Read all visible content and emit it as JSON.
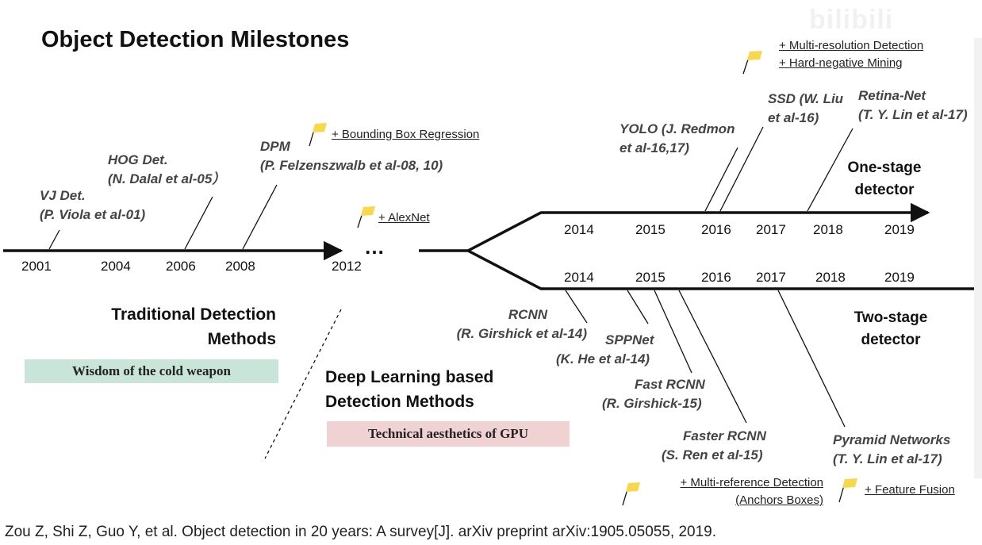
{
  "title": "Object Detection Milestones",
  "watermark": "bilibili",
  "citation": "Zou Z, Shi Z, Guo Y, et al. Object detection in 20 years: A survey[J]. arXiv preprint arXiv:1905.05055, 2019.",
  "traditional": {
    "heading_line1": "Traditional Detection",
    "heading_line2": "Methods",
    "tagline": "Wisdom of the cold weapon",
    "years": [
      "2001",
      "2004",
      "2006",
      "2008",
      "2012"
    ],
    "ellipsis": "…",
    "milestones": [
      {
        "name": "VJ Det.",
        "authors": "(P. Viola et al-01)"
      },
      {
        "name": "HOG Det.",
        "authors": "(N. Dalal et al-05）"
      },
      {
        "name": "DPM",
        "authors": "(P. Felzenszwalb et al-08, 10)"
      }
    ],
    "features": [
      "+ Bounding Box Regression",
      "+ AlexNet"
    ]
  },
  "deep_learning": {
    "heading_line1": "Deep Learning based",
    "heading_line2": "Detection Methods",
    "tagline": "Technical aesthetics of GPU"
  },
  "one_stage": {
    "label_line1": "One-stage",
    "label_line2": "detector",
    "years": [
      "2014",
      "2015",
      "2016",
      "2017",
      "2018",
      "2019"
    ],
    "milestones": [
      {
        "name": "YOLO (J. Redmon",
        "authors": "et al-16,17)"
      },
      {
        "name": "SSD (W. Liu",
        "authors": "et al-16)"
      },
      {
        "name": "Retina-Net",
        "authors": "(T. Y. Lin et al-17)"
      }
    ],
    "features": [
      "+ Multi-resolution Detection",
      "+ Hard-negative Mining"
    ]
  },
  "two_stage": {
    "label_line1": "Two-stage",
    "label_line2": "detector",
    "years": [
      "2014",
      "2015",
      "2016",
      "2017",
      "2018",
      "2019"
    ],
    "milestones": [
      {
        "name": "RCNN",
        "authors": "(R. Girshick et al-14)"
      },
      {
        "name": "SPPNet",
        "authors": "(K. He et al-14)"
      },
      {
        "name": "Fast RCNN",
        "authors": "(R. Girshick-15)"
      },
      {
        "name": "Faster RCNN",
        "authors": "(S. Ren et al-15)"
      },
      {
        "name": "Pyramid Networks",
        "authors": "(T. Y. Lin et al-17)"
      }
    ],
    "features": [
      "+ Multi-reference Detection",
      "(Anchors Boxes)",
      "+ Feature Fusion"
    ]
  },
  "colors": {
    "traditional_box": "#c9e4d9",
    "deep_learning_box": "#f1d2d2",
    "flag": "#f8d84a",
    "line": "#111111"
  },
  "icons": [
    "flag-icon"
  ]
}
